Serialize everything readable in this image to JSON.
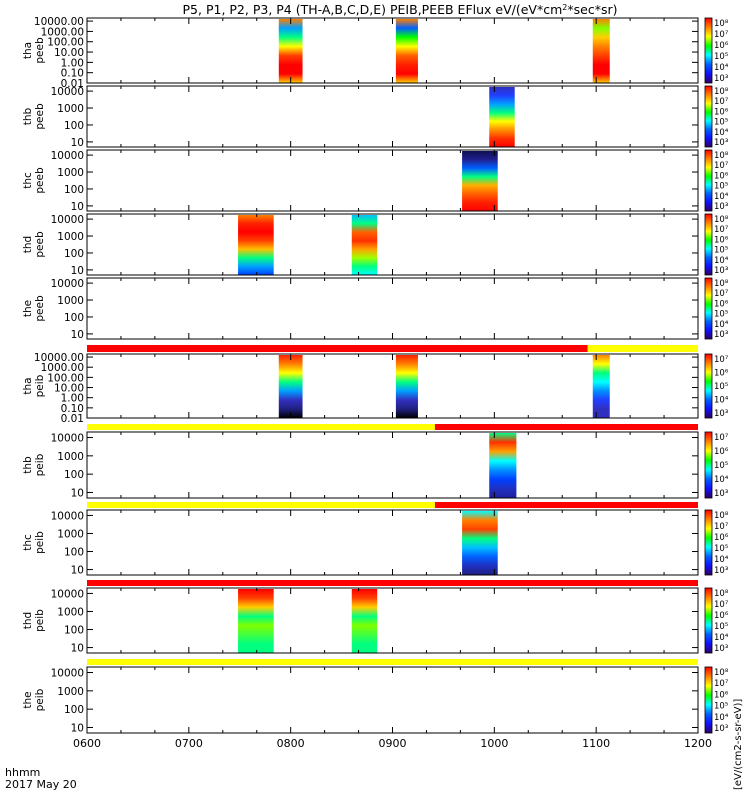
{
  "chart_data": {
    "type": "heatmap",
    "title": "P5, P1, P2, P3, P4 (TH-A,B,C,D,E) PEIB,PEEB EFlux eV/(eV*cm",
    "title_sup": "2",
    "title_end": "*sec*sr)",
    "x_title": "hhmm",
    "date_label": "2017 May 20",
    "x_ticks": [
      "0600",
      "0700",
      "0800",
      "0900",
      "1000",
      "1100",
      "1200"
    ],
    "x_range": [
      0,
      360
    ],
    "x_unit": "minutes after 0600",
    "panels": [
      {
        "probe": "tha",
        "product": "peeb",
        "yscale": "log",
        "yrange": [
          0.01,
          20000
        ],
        "yticks": [
          "10000.00",
          "1000.00",
          "100.00",
          "10.00",
          "1.00",
          "0.10",
          "0.01"
        ],
        "cbar_ticks": [
          "10⁸",
          "10⁷",
          "10⁶",
          "10⁵",
          "10⁴",
          "10³"
        ],
        "flag_bar": null,
        "blocks": [
          {
            "start": 113,
            "end": 127,
            "style": "peeb_a"
          },
          {
            "start": 182,
            "end": 195,
            "style": "peeb_a2"
          },
          {
            "start": 298,
            "end": 308,
            "style": "peeb_a3"
          }
        ]
      },
      {
        "probe": "thb",
        "product": "peeb",
        "yscale": "log",
        "yrange": [
          5,
          20000
        ],
        "yticks": [
          "10000",
          "1000",
          "100",
          "10"
        ],
        "cbar_ticks": [
          "10⁸",
          "10⁷",
          "10⁶",
          "10⁵",
          "10⁴",
          "10³"
        ],
        "flag_bar": null,
        "blocks": [
          {
            "start": 237,
            "end": 252,
            "style": "peeb_b"
          }
        ]
      },
      {
        "probe": "thc",
        "product": "peeb",
        "yscale": "log",
        "yrange": [
          5,
          20000
        ],
        "yticks": [
          "10000",
          "1000",
          "100",
          "10"
        ],
        "cbar_ticks": [
          "10⁸",
          "10⁷",
          "10⁶",
          "10⁵",
          "10⁴",
          "10³"
        ],
        "flag_bar": null,
        "blocks": [
          {
            "start": 221,
            "end": 242,
            "style": "peeb_c"
          }
        ]
      },
      {
        "probe": "thd",
        "product": "peeb",
        "yscale": "log",
        "yrange": [
          5,
          20000
        ],
        "yticks": [
          "10000",
          "1000",
          "100",
          "10"
        ],
        "cbar_ticks": [
          "10⁸",
          "10⁷",
          "10⁶",
          "10⁵",
          "10⁴",
          "10³"
        ],
        "flag_bar": null,
        "blocks": [
          {
            "start": 89,
            "end": 110,
            "style": "peeb_d"
          },
          {
            "start": 156,
            "end": 171,
            "style": "peeb_d2"
          }
        ]
      },
      {
        "probe": "the",
        "product": "peeb",
        "yscale": "log",
        "yrange": [
          5,
          20000
        ],
        "yticks": [
          "10000",
          "1000",
          "100",
          "10"
        ],
        "cbar_ticks": [
          "10⁸",
          "10⁷",
          "10⁶",
          "10⁵",
          "10⁴",
          "10³"
        ],
        "flag_bar": null,
        "blocks": []
      },
      {
        "probe": "tha",
        "product": "peib",
        "yscale": "log",
        "yrange": [
          0.01,
          20000
        ],
        "yticks": [
          "10000.00",
          "1000.00",
          "100.00",
          "10.00",
          "1.00",
          "0.10",
          "0.01"
        ],
        "cbar_ticks": [
          "10⁷",
          "10⁶",
          "10⁵",
          "10⁴",
          "10³"
        ],
        "flag_bar": [
          {
            "start": 0,
            "end": 295,
            "color": "#ff0000"
          },
          {
            "start": 295,
            "end": 360,
            "color": "#ffff00"
          }
        ],
        "blocks": [
          {
            "start": 113,
            "end": 127,
            "style": "peib_a"
          },
          {
            "start": 182,
            "end": 195,
            "style": "peib_a"
          },
          {
            "start": 298,
            "end": 308,
            "style": "peib_a3"
          }
        ]
      },
      {
        "probe": "thb",
        "product": "peib",
        "yscale": "log",
        "yrange": [
          5,
          20000
        ],
        "yticks": [
          "10000",
          "1000",
          "100",
          "10"
        ],
        "cbar_ticks": [
          "10⁷",
          "10⁶",
          "10⁵",
          "10⁴",
          "10³"
        ],
        "flag_bar": [
          {
            "start": 0,
            "end": 205,
            "color": "#ffff00"
          },
          {
            "start": 205,
            "end": 360,
            "color": "#ff0000"
          }
        ],
        "blocks": [
          {
            "start": 237,
            "end": 253,
            "style": "peib_b"
          }
        ]
      },
      {
        "probe": "thc",
        "product": "peib",
        "yscale": "log",
        "yrange": [
          5,
          20000
        ],
        "yticks": [
          "10000",
          "1000",
          "100",
          "10"
        ],
        "cbar_ticks": [
          "10⁸",
          "10⁷",
          "10⁶",
          "10⁵",
          "10⁴",
          "10³"
        ],
        "flag_bar": [
          {
            "start": 0,
            "end": 205,
            "color": "#ffff00"
          },
          {
            "start": 205,
            "end": 360,
            "color": "#ff0000"
          }
        ],
        "blocks": [
          {
            "start": 221,
            "end": 242,
            "style": "peib_c"
          }
        ]
      },
      {
        "probe": "thd",
        "product": "peib",
        "yscale": "log",
        "yrange": [
          5,
          20000
        ],
        "yticks": [
          "10000",
          "1000",
          "100",
          "10"
        ],
        "cbar_ticks": [
          "10⁸",
          "10⁷",
          "10⁶",
          "10⁵",
          "10⁴",
          "10³"
        ],
        "flag_bar": [
          {
            "start": 0,
            "end": 360,
            "color": "#ff0000"
          }
        ],
        "blocks": [
          {
            "start": 89,
            "end": 110,
            "style": "peib_d"
          },
          {
            "start": 156,
            "end": 171,
            "style": "peib_d"
          }
        ]
      },
      {
        "probe": "the",
        "product": "peib",
        "yscale": "log",
        "yrange": [
          5,
          20000
        ],
        "yticks": [
          "10000",
          "1000",
          "100",
          "10"
        ],
        "cbar_ticks": [
          "10⁸",
          "10⁷",
          "10⁶",
          "10⁵",
          "10⁴",
          "10³"
        ],
        "flag_bar": [
          {
            "start": 0,
            "end": 360,
            "color": "#ffff00"
          }
        ],
        "blocks": []
      }
    ],
    "styles": {
      "peeb_a": [
        "#ffd000",
        "#ff0000",
        "#ff0000",
        "#ff4000",
        "#ffff00",
        "#00ff80",
        "#00a0ff",
        "#ff8000"
      ],
      "peeb_a2": [
        "#ffd000",
        "#ff0000",
        "#ff2000",
        "#ff6000",
        "#ffff00",
        "#00ff00",
        "#0060ff",
        "#ff8000"
      ],
      "peeb_a3": [
        "#ffd000",
        "#ff0000",
        "#ff0000",
        "#ff4000",
        "#ff8000",
        "#ffd000",
        "#80ff00",
        "#ff8000"
      ],
      "peeb_b": [
        "#ff0000",
        "#ff3000",
        "#ff9000",
        "#ffff00",
        "#00ff80",
        "#00a0ff",
        "#2040ff",
        "#3030c0"
      ],
      "peeb_c": [
        "#ff0000",
        "#ff2000",
        "#ff6000",
        "#ffb000",
        "#00ff80",
        "#0060ff",
        "#202090",
        "#101050"
      ],
      "peeb_d": [
        "#0040ff",
        "#00a0ff",
        "#00ff80",
        "#ffc000",
        "#ff4000",
        "#ff0000",
        "#ff2000",
        "#ff8000"
      ],
      "peeb_d2": [
        "#00ffff",
        "#00ff80",
        "#a0ff00",
        "#ffa000",
        "#ff3000",
        "#ff6000",
        "#00ff80",
        "#00c0ff"
      ],
      "peib_a": [
        "#000000",
        "#202080",
        "#3030c0",
        "#00a0ff",
        "#00ff80",
        "#ffff00",
        "#ff8000",
        "#ff2000"
      ],
      "peib_a3": [
        "#3030c0",
        "#3030c0",
        "#2040ff",
        "#0090ff",
        "#00ffff",
        "#00ff80",
        "#ffff00",
        "#ff8000"
      ],
      "peib_b": [
        "#2020a0",
        "#2030c0",
        "#0040ff",
        "#0090ff",
        "#00ffff",
        "#ffa000",
        "#ff3000",
        "#00ff80"
      ],
      "peib_c": [
        "#202080",
        "#2030c0",
        "#0060ff",
        "#00c0ff",
        "#00ff80",
        "#ff4000",
        "#ff8000",
        "#00ffff"
      ],
      "peib_d": [
        "#00ff80",
        "#00ff80",
        "#40ff40",
        "#80ff00",
        "#00ff80",
        "#ffd000",
        "#ff4000",
        "#ff0000"
      ]
    },
    "colorbar_title": "[eV/(cm2-s-sr-eV)]",
    "colorbar_stops": [
      "#ff0000",
      "#ff8000",
      "#ffff00",
      "#00ff00",
      "#00ffff",
      "#0060ff",
      "#1010ff",
      "#300060"
    ]
  }
}
